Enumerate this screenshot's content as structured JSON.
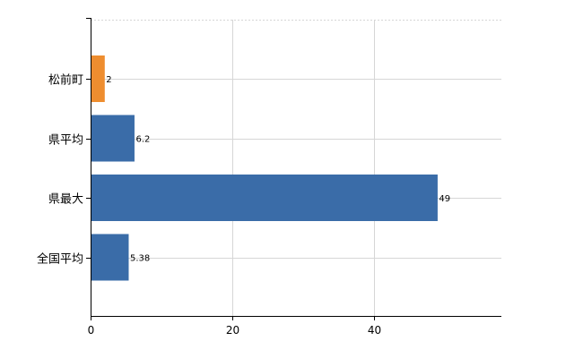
{
  "chart_data": {
    "type": "bar",
    "orientation": "horizontal",
    "categories": [
      "松前町",
      "県平均",
      "県最大",
      "全国平均"
    ],
    "values": [
      2,
      6.2,
      49,
      5.38
    ],
    "value_labels": [
      "2",
      "6.2",
      "49",
      "5.38"
    ],
    "bar_colors": [
      "#ee8d2f",
      "#3a6ca8",
      "#3a6ca8",
      "#3a6ca8"
    ],
    "xlim": [
      0,
      58
    ],
    "x_ticks": [
      0,
      20,
      40
    ],
    "x_tick_labels": [
      "0",
      "20",
      "40"
    ],
    "grid": true
  }
}
